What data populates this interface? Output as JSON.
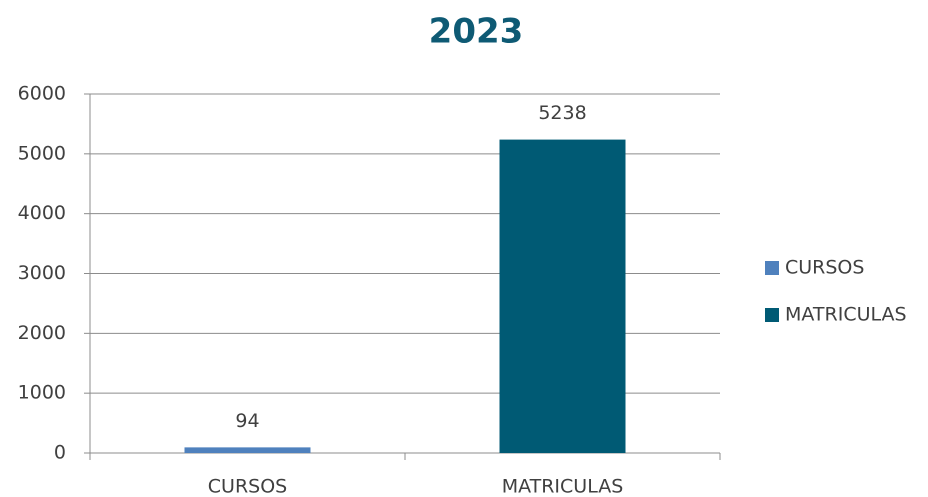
{
  "chart_data": {
    "type": "bar",
    "title": "2023",
    "categories": [
      "CURSOS",
      "MATRICULAS"
    ],
    "values": [
      94,
      5238
    ],
    "colors": [
      "#4f81bd",
      "#005a74"
    ],
    "ylim": [
      0,
      6000
    ],
    "yticks": [
      0,
      1000,
      2000,
      3000,
      4000,
      5000,
      6000
    ],
    "grid": true,
    "legend": "right"
  }
}
